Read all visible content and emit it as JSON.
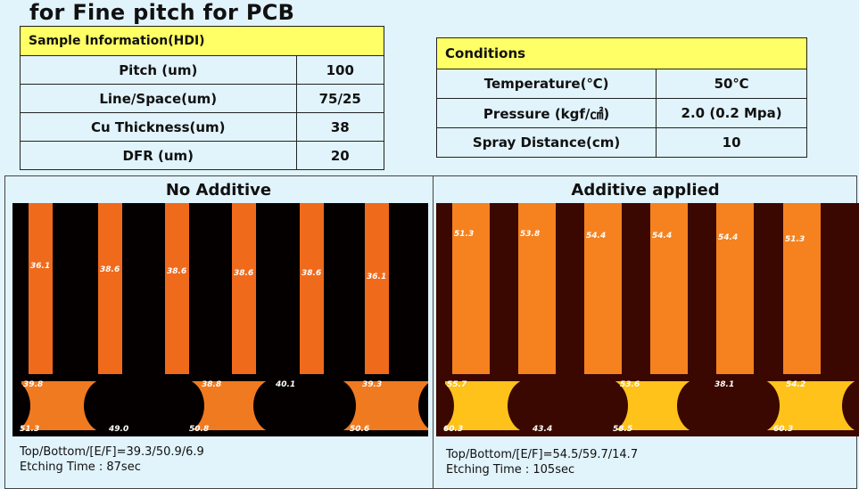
{
  "title": "for Fine pitch for PCB",
  "sample_table": {
    "header": "Sample Information(HDI)",
    "rows": [
      {
        "label": "Pitch (um)",
        "value": "100"
      },
      {
        "label": "Line/Space(um)",
        "value": "75/25"
      },
      {
        "label": "Cu Thickness(um)",
        "value": "38"
      },
      {
        "label": "DFR (um)",
        "value": "20"
      }
    ]
  },
  "conditions_table": {
    "header": "Conditions",
    "rows": [
      {
        "label": "Temperature(℃)",
        "value": "50℃"
      },
      {
        "label": "Pressure (kgf/㎠)",
        "value": "2.0 (0.2 Mpa)"
      },
      {
        "label": "Spray Distance(cm)",
        "value": "10"
      }
    ]
  },
  "panels": [
    {
      "heading": "No Additive",
      "strip_labels": [
        "36.1",
        "38.6",
        "38.6",
        "38.6",
        "38.6",
        "36.1"
      ],
      "cross_top": [
        "39.8",
        "38.8",
        "40.1",
        "39.3"
      ],
      "cross_bottom": [
        "51.3",
        "49.0",
        "50.8",
        "50.6"
      ],
      "result": "Top/Bottom/[E/F]=39.3/50.9/6.9",
      "etching_time": "Etching Time : 87sec",
      "colors": {
        "bg": "#050000",
        "strip": "#f06a1c",
        "cross": "#f07a20"
      }
    },
    {
      "heading": "Additive applied",
      "strip_labels": [
        "51.3",
        "53.8",
        "54.4",
        "54.4",
        "54.4",
        "51.3"
      ],
      "cross_top": [
        "55.7",
        "53.6",
        "38.1",
        "54.2"
      ],
      "cross_bottom": [
        "60.3",
        "43.4",
        "58.5",
        "60.3"
      ],
      "result": "Top/Bottom/[E/F]=54.5/59.7/14.7",
      "etching_time": "Etching Time : 105sec",
      "colors": {
        "bg": "#3a0800",
        "strip": "#f5821f",
        "cross": "#ffc21a"
      }
    }
  ],
  "colors": {
    "background": "#e1f3fb",
    "header_yellow": "#ffff66"
  }
}
